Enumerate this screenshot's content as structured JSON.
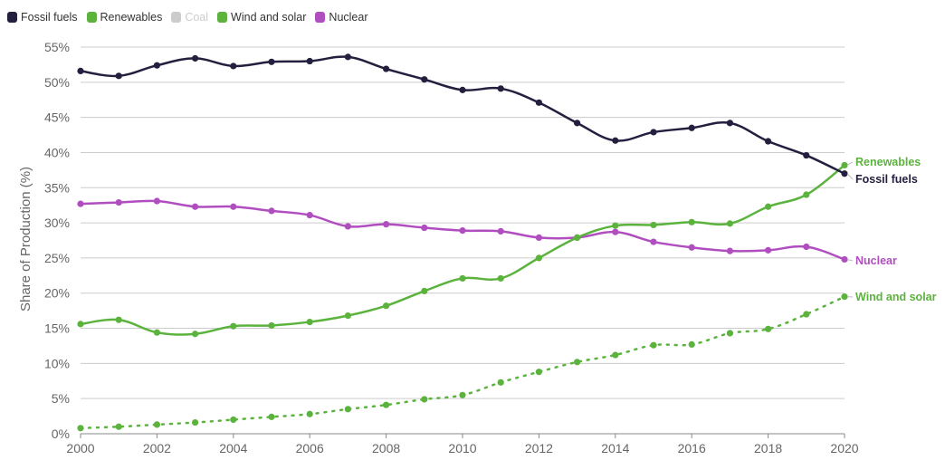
{
  "legend": {
    "items": [
      {
        "label": "Fossil fuels",
        "color": "#231f3f",
        "enabled": true
      },
      {
        "label": "Renewables",
        "color": "#5bb33e",
        "enabled": true
      },
      {
        "label": "Coal",
        "color": "#cccccc",
        "enabled": false
      },
      {
        "label": "Wind and solar",
        "color": "#5bb33e",
        "enabled": true
      },
      {
        "label": "Nuclear",
        "color": "#b04ec0",
        "enabled": true
      }
    ]
  },
  "chart_data": {
    "type": "line",
    "title": "",
    "xlabel": "",
    "ylabel": "Share of Production (%)",
    "xlim": [
      2000,
      2020
    ],
    "ylim": [
      0,
      55
    ],
    "grid": true,
    "legend_position": "top-left",
    "x_ticks": [
      "2000",
      "2002",
      "2004",
      "2006",
      "2008",
      "2010",
      "2012",
      "2014",
      "2016",
      "2018",
      "2020"
    ],
    "y_ticks": [
      "0%",
      "5%",
      "10%",
      "15%",
      "20%",
      "25%",
      "30%",
      "35%",
      "40%",
      "45%",
      "50%",
      "55%"
    ],
    "x": [
      2000,
      2001,
      2002,
      2003,
      2004,
      2005,
      2006,
      2007,
      2008,
      2009,
      2010,
      2011,
      2012,
      2013,
      2014,
      2015,
      2016,
      2017,
      2018,
      2019,
      2020
    ],
    "series": [
      {
        "name": "Fossil fuels",
        "color": "#231f3f",
        "dashed": false,
        "end_label": "Fossil fuels",
        "values": [
          51.6,
          50.9,
          52.4,
          53.4,
          52.3,
          52.9,
          53.0,
          53.6,
          51.9,
          50.4,
          48.9,
          49.1,
          47.1,
          44.2,
          41.7,
          42.9,
          43.5,
          44.2,
          41.6,
          39.6,
          37.0
        ]
      },
      {
        "name": "Renewables",
        "color": "#5bb33e",
        "dashed": false,
        "end_label": "Renewables",
        "values": [
          15.6,
          16.2,
          14.4,
          14.2,
          15.3,
          15.4,
          15.9,
          16.8,
          18.2,
          20.3,
          22.1,
          22.1,
          25.0,
          27.9,
          29.6,
          29.7,
          30.1,
          29.9,
          32.3,
          34.0,
          38.2
        ]
      },
      {
        "name": "Wind and solar",
        "color": "#5bb33e",
        "dashed": true,
        "end_label": "Wind and solar",
        "values": [
          0.8,
          1.0,
          1.3,
          1.6,
          2.0,
          2.4,
          2.8,
          3.5,
          4.1,
          4.9,
          5.5,
          7.3,
          8.8,
          10.2,
          11.2,
          12.6,
          12.7,
          14.3,
          14.9,
          17.0,
          19.5
        ]
      },
      {
        "name": "Nuclear",
        "color": "#b04ec0",
        "dashed": false,
        "end_label": "Nuclear",
        "values": [
          32.7,
          32.9,
          33.1,
          32.3,
          32.3,
          31.7,
          31.1,
          29.5,
          29.8,
          29.3,
          28.9,
          28.8,
          27.9,
          27.9,
          28.7,
          27.3,
          26.5,
          26.0,
          26.1,
          26.6,
          24.8
        ]
      }
    ]
  }
}
